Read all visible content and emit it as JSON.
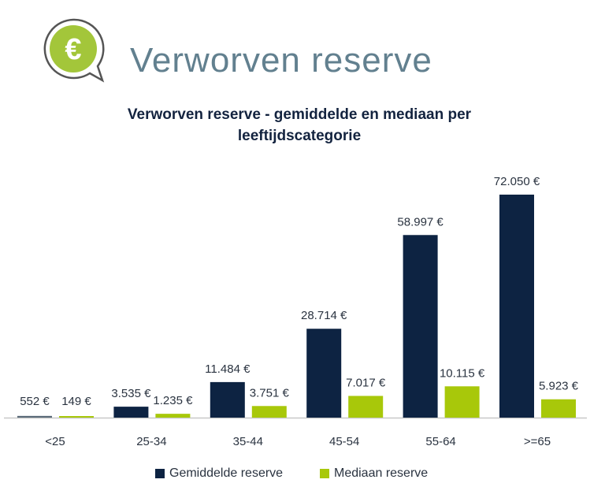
{
  "header": {
    "title": "Verworven reserve",
    "icon": "euro-speech-bubble-icon"
  },
  "colors": {
    "gemiddelde": "#0d2342",
    "mediaan": "#a8c80a",
    "title": "#62808f"
  },
  "chart_data": {
    "type": "bar",
    "title_line1": "Verworven reserve - gemiddelde en mediaan per",
    "title_line2": "leeftijdscategorie",
    "categories": [
      "<25",
      "25-34",
      "35-44",
      "45-54",
      "55-64",
      ">=65"
    ],
    "series": [
      {
        "name": "Gemiddelde reserve",
        "values": [
          552,
          3535,
          11484,
          28714,
          58997,
          72050
        ],
        "labels": [
          "552 €",
          "3.535 €",
          "11.484 €",
          "28.714 €",
          "58.997 €",
          "72.050 €"
        ]
      },
      {
        "name": "Mediaan reserve",
        "values": [
          149,
          1235,
          3751,
          7017,
          10115,
          5923
        ],
        "labels": [
          "149 €",
          "1.235 €",
          "3.751 €",
          "7.017 €",
          "10.115 €",
          "5.923 €"
        ]
      }
    ],
    "xlabel": "",
    "ylabel": "",
    "ylim": [
      0,
      72050
    ],
    "grid": false,
    "legend": "bottom"
  }
}
